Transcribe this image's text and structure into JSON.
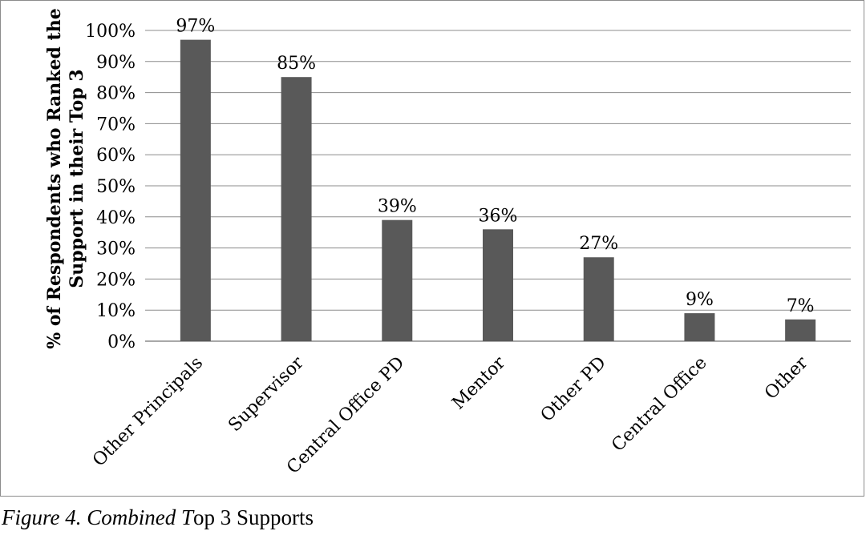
{
  "chart_data": {
    "type": "bar",
    "categories": [
      "Other Principals",
      "Supervisor",
      "Central Office PD",
      "Mentor",
      "Other PD",
      "Central Office",
      "Other"
    ],
    "values": [
      97,
      85,
      39,
      36,
      27,
      9,
      7
    ],
    "data_labels": [
      "97%",
      "85%",
      "39%",
      "36%",
      "27%",
      "9%",
      "7%"
    ],
    "title": "",
    "xlabel": "",
    "ylabel_lines": [
      "% of Respondents who Ranked the",
      "Support in their Top 3"
    ],
    "ylim": [
      0,
      100
    ],
    "y_ticks": [
      "0%",
      "10%",
      "20%",
      "30%",
      "40%",
      "50%",
      "60%",
      "70%",
      "80%",
      "90%",
      "100%"
    ],
    "grid": true,
    "legend": "none",
    "bar_color": "#595959",
    "grid_color": "#8c8c8c"
  },
  "caption": {
    "figure_label": "Figure 4. Combined ",
    "italic_letter": "T",
    "rest": "op 3 Supports"
  }
}
